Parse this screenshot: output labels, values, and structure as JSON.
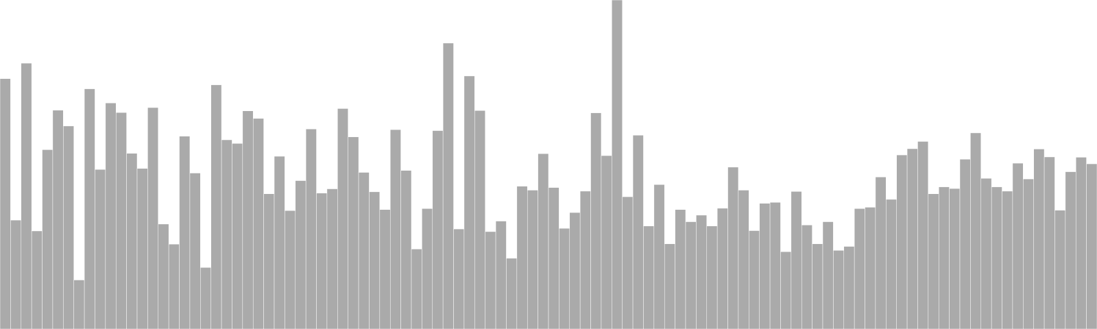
{
  "chart_data": {
    "type": "bar",
    "title": "",
    "xlabel": "",
    "ylabel": "",
    "ylim": [
      0,
      100
    ],
    "grid": false,
    "legend": "none",
    "colors": {
      "bar": "#aaaaaa",
      "bar_edge": "#ffffff",
      "background": "#ffffff"
    },
    "values": [
      76.1,
      33.1,
      80.8,
      29.8,
      54.5,
      66.5,
      61.7,
      14.9,
      73.0,
      48.5,
      68.7,
      65.8,
      53.4,
      48.8,
      67.3,
      31.9,
      25.8,
      58.6,
      47.4,
      18.7,
      74.2,
      57.5,
      56.4,
      66.3,
      64.0,
      41.1,
      52.5,
      36.0,
      45.1,
      60.8,
      41.3,
      42.6,
      67.0,
      58.4,
      47.6,
      41.7,
      36.3,
      60.6,
      48.2,
      24.3,
      36.6,
      60.3,
      86.9,
      30.4,
      76.9,
      66.4,
      29.6,
      32.8,
      21.5,
      43.4,
      42.2,
      53.3,
      43.0,
      30.6,
      35.4,
      41.9,
      65.7,
      52.7,
      100.0,
      40.2,
      58.9,
      31.3,
      43.9,
      25.9,
      36.3,
      32.6,
      34.6,
      31.3,
      36.7,
      49.2,
      42.2,
      29.9,
      38.2,
      38.5,
      23.5,
      41.8,
      31.6,
      25.9,
      32.6,
      23.9,
      25.1,
      36.6,
      37.0,
      46.2,
      39.4,
      52.9,
      54.8,
      57.0,
      41.1,
      43.2,
      42.7,
      51.6,
      59.6,
      45.8,
      43.2,
      41.9,
      50.4,
      45.6,
      54.7,
      52.3,
      36.1,
      47.8,
      52.2,
      50.2
    ]
  }
}
